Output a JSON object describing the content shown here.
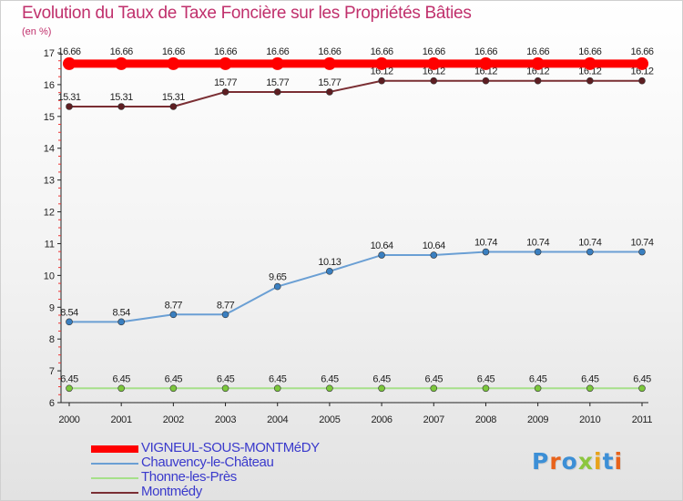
{
  "title": "Evolution du Taux de Taxe Foncière sur les Propriétés Bâties",
  "subtitle": "(en %)",
  "logo": {
    "text": "Proxiti",
    "colors": [
      "#3c8fd6",
      "#e8621a",
      "#3c8fd6",
      "#8cc63f",
      "#e8a21a",
      "#3c8fd6",
      "#e8621a"
    ]
  },
  "chart_data": {
    "type": "line",
    "x": [
      "2000",
      "2001",
      "2002",
      "2003",
      "2004",
      "2005",
      "2006",
      "2007",
      "2008",
      "2009",
      "2010",
      "2011"
    ],
    "ylim": [
      6,
      17
    ],
    "yticks": [
      "6",
      "7",
      "8",
      "9",
      "10",
      "11",
      "12",
      "13",
      "14",
      "15",
      "16",
      "17"
    ],
    "grid": false,
    "legend_position": "bottom-left",
    "series": [
      {
        "name": "VIGNEUL-SOUS-MONTMéDY",
        "color": "#ff0000",
        "bold": true,
        "values": [
          16.66,
          16.66,
          16.66,
          16.66,
          16.66,
          16.66,
          16.66,
          16.66,
          16.66,
          16.66,
          16.66,
          16.66
        ],
        "labels": [
          "16.66",
          "16.66",
          "16.66",
          "16.66",
          "16.66",
          "16.66",
          "16.66",
          "16.66",
          "16.66",
          "16.66",
          "16.66",
          "16.66"
        ]
      },
      {
        "name": "Chauvency-le-Château",
        "color": "#6a9fd4",
        "marker": "#3a7fc0",
        "bold": false,
        "values": [
          8.54,
          8.54,
          8.77,
          8.77,
          9.65,
          10.13,
          10.64,
          10.64,
          10.74,
          10.74,
          10.74,
          10.74
        ],
        "labels": [
          "8.54",
          "8.54",
          "8.77",
          "8.77",
          "9.65",
          "10.13",
          "10.64",
          "10.64",
          "10.74",
          "10.74",
          "10.74",
          "10.74"
        ]
      },
      {
        "name": "Thonne-les-Près",
        "color": "#a6e08a",
        "marker": "#7cc83c",
        "bold": false,
        "values": [
          6.45,
          6.45,
          6.45,
          6.45,
          6.45,
          6.45,
          6.45,
          6.45,
          6.45,
          6.45,
          6.45,
          6.45
        ],
        "labels": [
          "6.45",
          "6.45",
          "6.45",
          "6.45",
          "6.45",
          "6.45",
          "6.45",
          "6.45",
          "6.45",
          "6.45",
          "6.45",
          "6.45"
        ]
      },
      {
        "name": "Montmédy",
        "color": "#7a2e33",
        "marker": "#5e1e22",
        "bold": false,
        "values": [
          15.31,
          15.31,
          15.31,
          15.77,
          15.77,
          15.77,
          16.12,
          16.12,
          16.12,
          16.12,
          16.12,
          16.12
        ],
        "labels": [
          "15.31",
          "15.31",
          "15.31",
          "15.77",
          "15.77",
          "15.77",
          "16.12",
          "16.12",
          "16.12",
          "16.12",
          "16.12",
          "16.12"
        ]
      }
    ]
  }
}
